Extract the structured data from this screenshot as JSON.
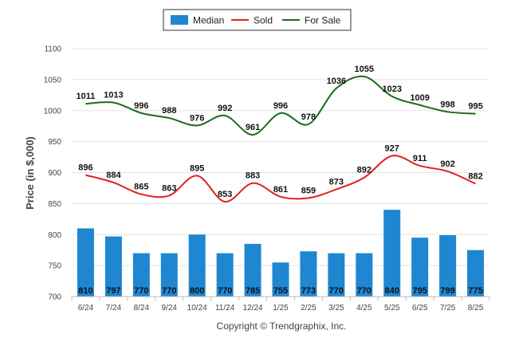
{
  "chart_data": {
    "type": "bar",
    "categories": [
      "6/24",
      "7/24",
      "8/24",
      "9/24",
      "10/24",
      "11/24",
      "12/24",
      "1/25",
      "2/25",
      "3/25",
      "4/25",
      "5/25",
      "6/25",
      "7/25",
      "8/25"
    ],
    "series": [
      {
        "name": "Median",
        "type": "bar",
        "color": "#1f87d1",
        "values": [
          810,
          797,
          770,
          770,
          800,
          770,
          785,
          755,
          773,
          770,
          770,
          840,
          795,
          799,
          775
        ]
      },
      {
        "name": "Sold",
        "type": "line",
        "color": "#e02020",
        "values": [
          896,
          884,
          865,
          863,
          895,
          853,
          883,
          861,
          859,
          873,
          892,
          927,
          911,
          902,
          882
        ]
      },
      {
        "name": "For Sale",
        "type": "line",
        "color": "#1a6b1a",
        "values": [
          1011,
          1013,
          996,
          988,
          976,
          992,
          961,
          996,
          978,
          1036,
          1055,
          1023,
          1009,
          998,
          995
        ]
      }
    ],
    "ylabel": "Price (in $,000)",
    "ylim": [
      700,
      1100
    ],
    "yticks": [
      700,
      750,
      800,
      850,
      900,
      950,
      1000,
      1050,
      1100
    ],
    "grid": true,
    "legend": "top-center",
    "credit": "Copyright © Trendgraphix, Inc."
  }
}
